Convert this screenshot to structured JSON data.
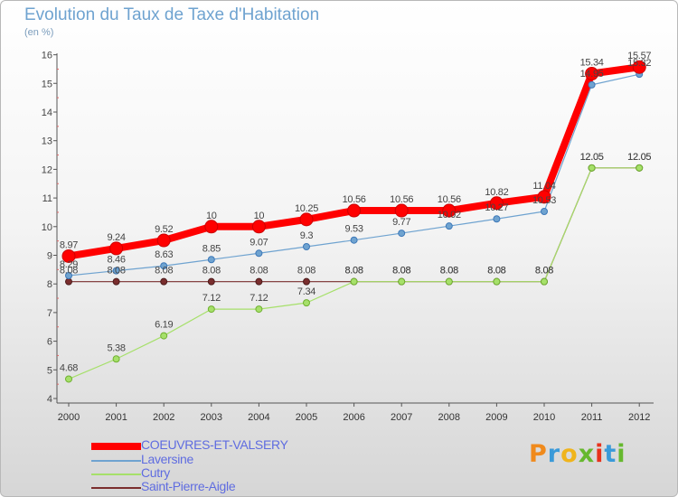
{
  "header": {
    "title": "Evolution du Taux de Taxe d'Habitation",
    "subtitle": "(en %)"
  },
  "logo": {
    "text": "Proxiti",
    "letter_colors": [
      "#f08a1c",
      "#3a9ad9",
      "#f0b41c",
      "#66b82e",
      "#e8321c",
      "#3a9ad9",
      "#66b82e"
    ]
  },
  "chart_data": {
    "type": "line",
    "title": "Evolution du Taux de Taxe d'Habitation",
    "subtitle": "(en %)",
    "x": [
      "2000",
      "2001",
      "2002",
      "2003",
      "2004",
      "2005",
      "2006",
      "2007",
      "2008",
      "2009",
      "2010",
      "2011",
      "2012"
    ],
    "y_ticks": [
      4,
      5,
      6,
      7,
      8,
      9,
      10,
      11,
      12,
      13,
      14,
      15,
      16
    ],
    "ylim": [
      4,
      16
    ],
    "grid": false,
    "legend_position": "bottom-left",
    "series": [
      {
        "name": "COEUVRES-ET-VALSERY",
        "color": "#ff0000",
        "values": [
          8.97,
          9.24,
          9.52,
          10,
          10,
          10.25,
          10.56,
          10.56,
          10.56,
          10.82,
          11.04,
          15.34,
          15.57
        ],
        "labels": [
          "8.97",
          "9.24",
          "9.52",
          "10",
          "10",
          "10.25",
          "10.56",
          "10.56",
          "10.56",
          "10.82",
          "11.04",
          "15.34",
          "15.57"
        ]
      },
      {
        "name": "Laversine",
        "color": "#6fa3d0",
        "values": [
          8.29,
          8.46,
          8.63,
          8.85,
          9.07,
          9.3,
          9.53,
          9.77,
          10.02,
          10.27,
          10.53,
          14.95,
          15.32
        ],
        "labels": [
          "8.29",
          "8.46",
          "8.63",
          "8.85",
          "9.07",
          "9.3",
          "9.53",
          "9.77",
          "10.02",
          "10.27",
          "10.53",
          "14.95",
          "15.32"
        ]
      },
      {
        "name": "Cutry",
        "color": "#a6e06a",
        "values": [
          4.68,
          5.38,
          6.19,
          7.12,
          7.12,
          7.34,
          8.08,
          8.08,
          8.08,
          8.08,
          8.08,
          12.05,
          12.05
        ],
        "labels": [
          "4.68",
          "5.38",
          "6.19",
          "7.12",
          "7.12",
          "7.34",
          "8.08",
          "8.08",
          "8.08",
          "8.08",
          "8.08",
          "12.05",
          "12.05"
        ]
      },
      {
        "name": "Saint-Pierre-Aigle",
        "color": "#7a2e2e",
        "values": [
          8.08,
          8.08,
          8.08,
          8.08,
          8.08,
          8.08,
          8.08,
          8.08,
          8.08,
          8.08,
          8.08,
          12.05,
          12.05
        ],
        "labels": [
          "8.08",
          "8.08",
          "8.08",
          "8.08",
          "8.08",
          "8.08",
          "8.08",
          "8.08",
          "8.08",
          "8.08",
          "8.08",
          "12.05",
          "12.05"
        ]
      }
    ]
  }
}
